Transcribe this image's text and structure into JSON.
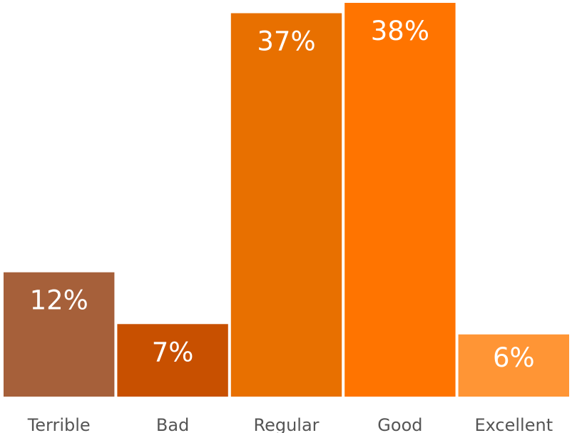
{
  "chart_data": {
    "type": "bar",
    "title": "",
    "xlabel": "",
    "ylabel": "",
    "categories": [
      "Terrible",
      "Bad",
      "Regular",
      "Good",
      "Excellent"
    ],
    "values": [
      12,
      7,
      37,
      38,
      6
    ],
    "value_labels": [
      "12%",
      "7%",
      "37%",
      "38%",
      "6%"
    ],
    "colors": [
      "#A6603A",
      "#C85000",
      "#E87000",
      "#FF7400",
      "#FF9535"
    ],
    "ylim": [
      0,
      38
    ],
    "grid": false,
    "legend": "none"
  }
}
